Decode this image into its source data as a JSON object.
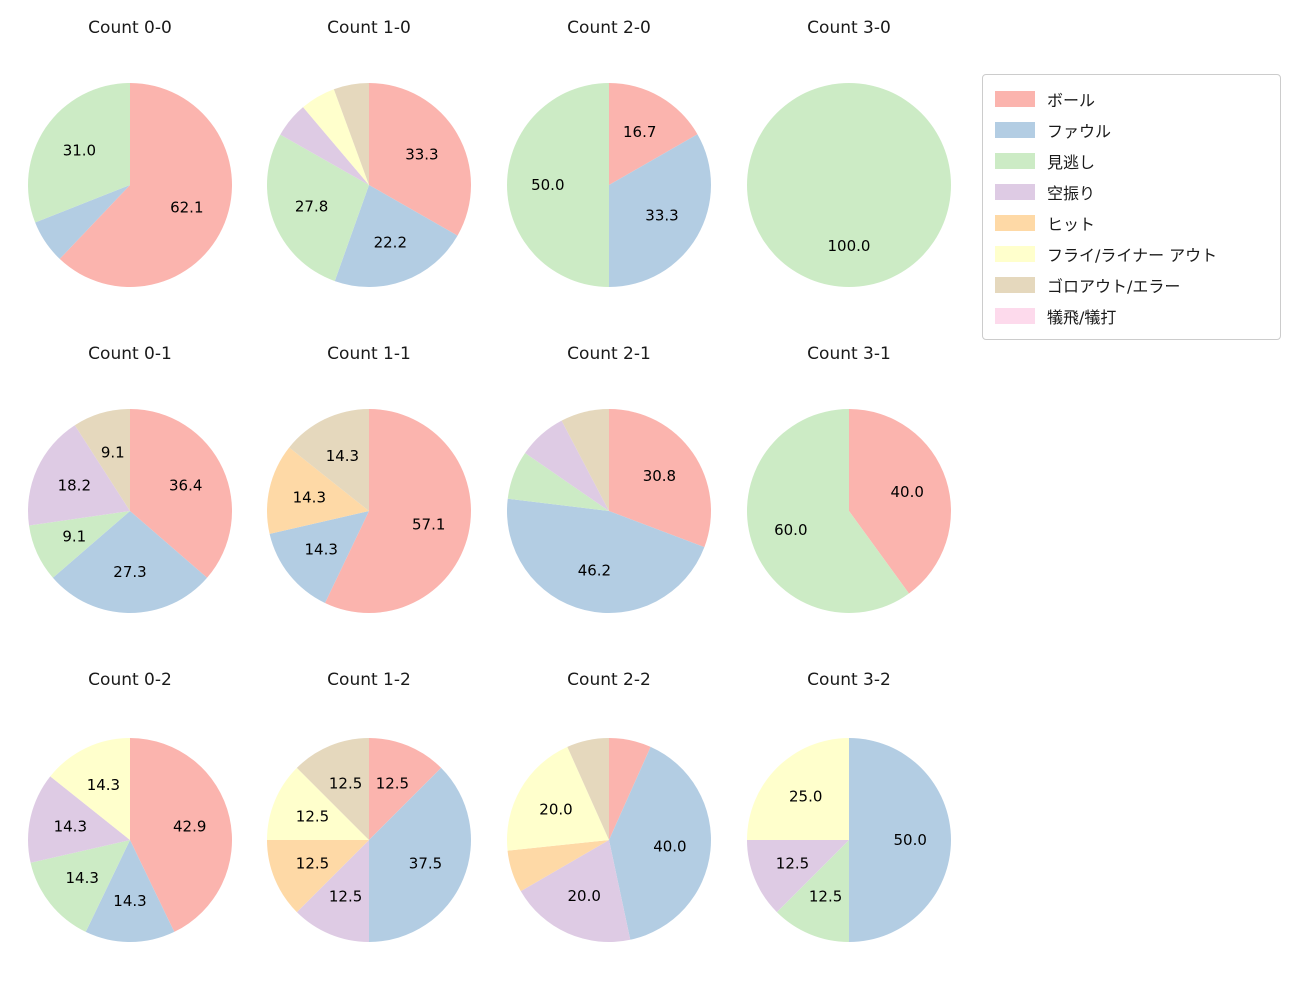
{
  "figure": {
    "background": "#ffffff"
  },
  "chart_data": {
    "type": "pie",
    "unit": "percent",
    "grid": {
      "rows": 3,
      "cols": 4
    },
    "start_angle": "top",
    "direction": "clockwise",
    "legend_position": "upper-right",
    "label_distance": 0.6,
    "categories": [
      {
        "key": "ball",
        "label": "ボール",
        "color": "#fbb4ae"
      },
      {
        "key": "foul",
        "label": "ファウル",
        "color": "#b3cde3"
      },
      {
        "key": "called_strike",
        "label": "見逃し",
        "color": "#ccebc5"
      },
      {
        "key": "swinging_strike",
        "label": "空振り",
        "color": "#decbe4"
      },
      {
        "key": "hit",
        "label": "ヒット",
        "color": "#fed9a6"
      },
      {
        "key": "fly_liner_out",
        "label": "フライ/ライナー アウト",
        "color": "#ffffcc"
      },
      {
        "key": "ground_out_error",
        "label": "ゴロアウト/エラー",
        "color": "#e5d8bd"
      },
      {
        "key": "sacrifice",
        "label": "犠飛/犠打",
        "color": "#fddaec"
      }
    ],
    "pies": [
      {
        "title": "Count 0-0",
        "slices": [
          {
            "cat": "ball",
            "value": 62.1,
            "label": "62.1"
          },
          {
            "cat": "foul",
            "value": 6.9,
            "label": ""
          },
          {
            "cat": "called_strike",
            "value": 31.0,
            "label": "31.0"
          }
        ]
      },
      {
        "title": "Count 1-0",
        "slices": [
          {
            "cat": "ball",
            "value": 33.3,
            "label": "33.3"
          },
          {
            "cat": "foul",
            "value": 22.2,
            "label": "22.2"
          },
          {
            "cat": "called_strike",
            "value": 27.8,
            "label": "27.8"
          },
          {
            "cat": "swinging_strike",
            "value": 5.6,
            "label": ""
          },
          {
            "cat": "fly_liner_out",
            "value": 5.6,
            "label": ""
          },
          {
            "cat": "ground_out_error",
            "value": 5.6,
            "label": ""
          }
        ]
      },
      {
        "title": "Count 2-0",
        "slices": [
          {
            "cat": "ball",
            "value": 16.7,
            "label": "16.7"
          },
          {
            "cat": "foul",
            "value": 33.3,
            "label": "33.3"
          },
          {
            "cat": "called_strike",
            "value": 50.0,
            "label": "50.0"
          }
        ]
      },
      {
        "title": "Count 3-0",
        "slices": [
          {
            "cat": "called_strike",
            "value": 100.0,
            "label": "100.0"
          }
        ]
      },
      {
        "title": "Count 0-1",
        "slices": [
          {
            "cat": "ball",
            "value": 36.4,
            "label": "36.4"
          },
          {
            "cat": "foul",
            "value": 27.3,
            "label": "27.3"
          },
          {
            "cat": "called_strike",
            "value": 9.1,
            "label": "9.1"
          },
          {
            "cat": "swinging_strike",
            "value": 18.2,
            "label": "18.2"
          },
          {
            "cat": "ground_out_error",
            "value": 9.1,
            "label": "9.1"
          }
        ]
      },
      {
        "title": "Count 1-1",
        "slices": [
          {
            "cat": "ball",
            "value": 57.1,
            "label": "57.1"
          },
          {
            "cat": "foul",
            "value": 14.3,
            "label": "14.3"
          },
          {
            "cat": "hit",
            "value": 14.3,
            "label": "14.3"
          },
          {
            "cat": "ground_out_error",
            "value": 14.3,
            "label": "14.3"
          }
        ]
      },
      {
        "title": "Count 2-1",
        "slices": [
          {
            "cat": "ball",
            "value": 30.8,
            "label": "30.8"
          },
          {
            "cat": "foul",
            "value": 46.2,
            "label": "46.2"
          },
          {
            "cat": "called_strike",
            "value": 7.7,
            "label": ""
          },
          {
            "cat": "swinging_strike",
            "value": 7.7,
            "label": ""
          },
          {
            "cat": "ground_out_error",
            "value": 7.7,
            "label": ""
          }
        ]
      },
      {
        "title": "Count 3-1",
        "slices": [
          {
            "cat": "ball",
            "value": 40.0,
            "label": "40.0"
          },
          {
            "cat": "called_strike",
            "value": 60.0,
            "label": "60.0"
          }
        ]
      },
      {
        "title": "Count 0-2",
        "slices": [
          {
            "cat": "ball",
            "value": 42.9,
            "label": "42.9"
          },
          {
            "cat": "foul",
            "value": 14.3,
            "label": "14.3"
          },
          {
            "cat": "called_strike",
            "value": 14.3,
            "label": "14.3"
          },
          {
            "cat": "swinging_strike",
            "value": 14.3,
            "label": "14.3"
          },
          {
            "cat": "fly_liner_out",
            "value": 14.3,
            "label": "14.3"
          }
        ]
      },
      {
        "title": "Count 1-2",
        "slices": [
          {
            "cat": "ball",
            "value": 12.5,
            "label": "12.5"
          },
          {
            "cat": "foul",
            "value": 37.5,
            "label": "37.5"
          },
          {
            "cat": "swinging_strike",
            "value": 12.5,
            "label": "12.5"
          },
          {
            "cat": "hit",
            "value": 12.5,
            "label": "12.5"
          },
          {
            "cat": "fly_liner_out",
            "value": 12.5,
            "label": "12.5"
          },
          {
            "cat": "ground_out_error",
            "value": 12.5,
            "label": "12.5"
          }
        ]
      },
      {
        "title": "Count 2-2",
        "slices": [
          {
            "cat": "ball",
            "value": 6.7,
            "label": ""
          },
          {
            "cat": "foul",
            "value": 40.0,
            "label": "40.0"
          },
          {
            "cat": "swinging_strike",
            "value": 20.0,
            "label": "20.0"
          },
          {
            "cat": "hit",
            "value": 6.7,
            "label": ""
          },
          {
            "cat": "fly_liner_out",
            "value": 20.0,
            "label": "20.0"
          },
          {
            "cat": "ground_out_error",
            "value": 6.7,
            "label": ""
          }
        ]
      },
      {
        "title": "Count 3-2",
        "slices": [
          {
            "cat": "foul",
            "value": 50.0,
            "label": "50.0"
          },
          {
            "cat": "called_strike",
            "value": 12.5,
            "label": "12.5"
          },
          {
            "cat": "swinging_strike",
            "value": 12.5,
            "label": "12.5"
          },
          {
            "cat": "fly_liner_out",
            "value": 25.0,
            "label": "25.0"
          }
        ]
      }
    ]
  }
}
